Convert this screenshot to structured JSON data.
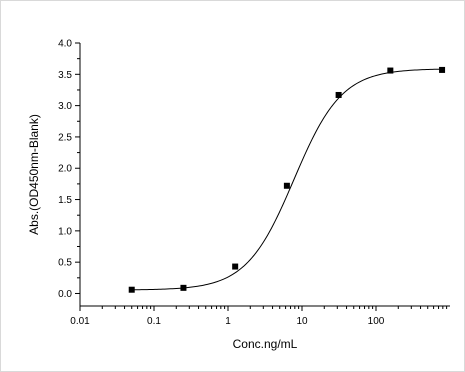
{
  "chart_data": {
    "type": "scatter",
    "title": "",
    "xlabel": "Conc.ng/mL",
    "ylabel": "Abs.(OD450nm-Blank)",
    "xscale": "log",
    "xlim": [
      0.01,
      1000
    ],
    "ylim": [
      -0.2,
      4.0
    ],
    "grid": false,
    "legend": "none",
    "x_ticks": [
      0.01,
      0.1,
      1,
      10,
      100
    ],
    "x_tick_labels": [
      "0.01",
      "0.1",
      "1",
      "10",
      "100"
    ],
    "y_ticks": [
      0.0,
      0.5,
      1.0,
      1.5,
      2.0,
      2.5,
      3.0,
      3.5,
      4.0
    ],
    "y_tick_labels": [
      "0.0",
      "0.5",
      "1.0",
      "1.5",
      "2.0",
      "2.5",
      "3.0",
      "3.5",
      "4.0"
    ],
    "series": [
      {
        "x": [
          0.05,
          0.25,
          1.25,
          6.25,
          31.25,
          156.25,
          781.25
        ],
        "y": [
          0.06,
          0.09,
          0.43,
          1.72,
          3.17,
          3.56,
          3.57
        ],
        "marker": "square",
        "fit": "4PL"
      }
    ],
    "colors": {
      "marker": "#000000",
      "curve": "#000000",
      "axis": "#000000"
    }
  }
}
